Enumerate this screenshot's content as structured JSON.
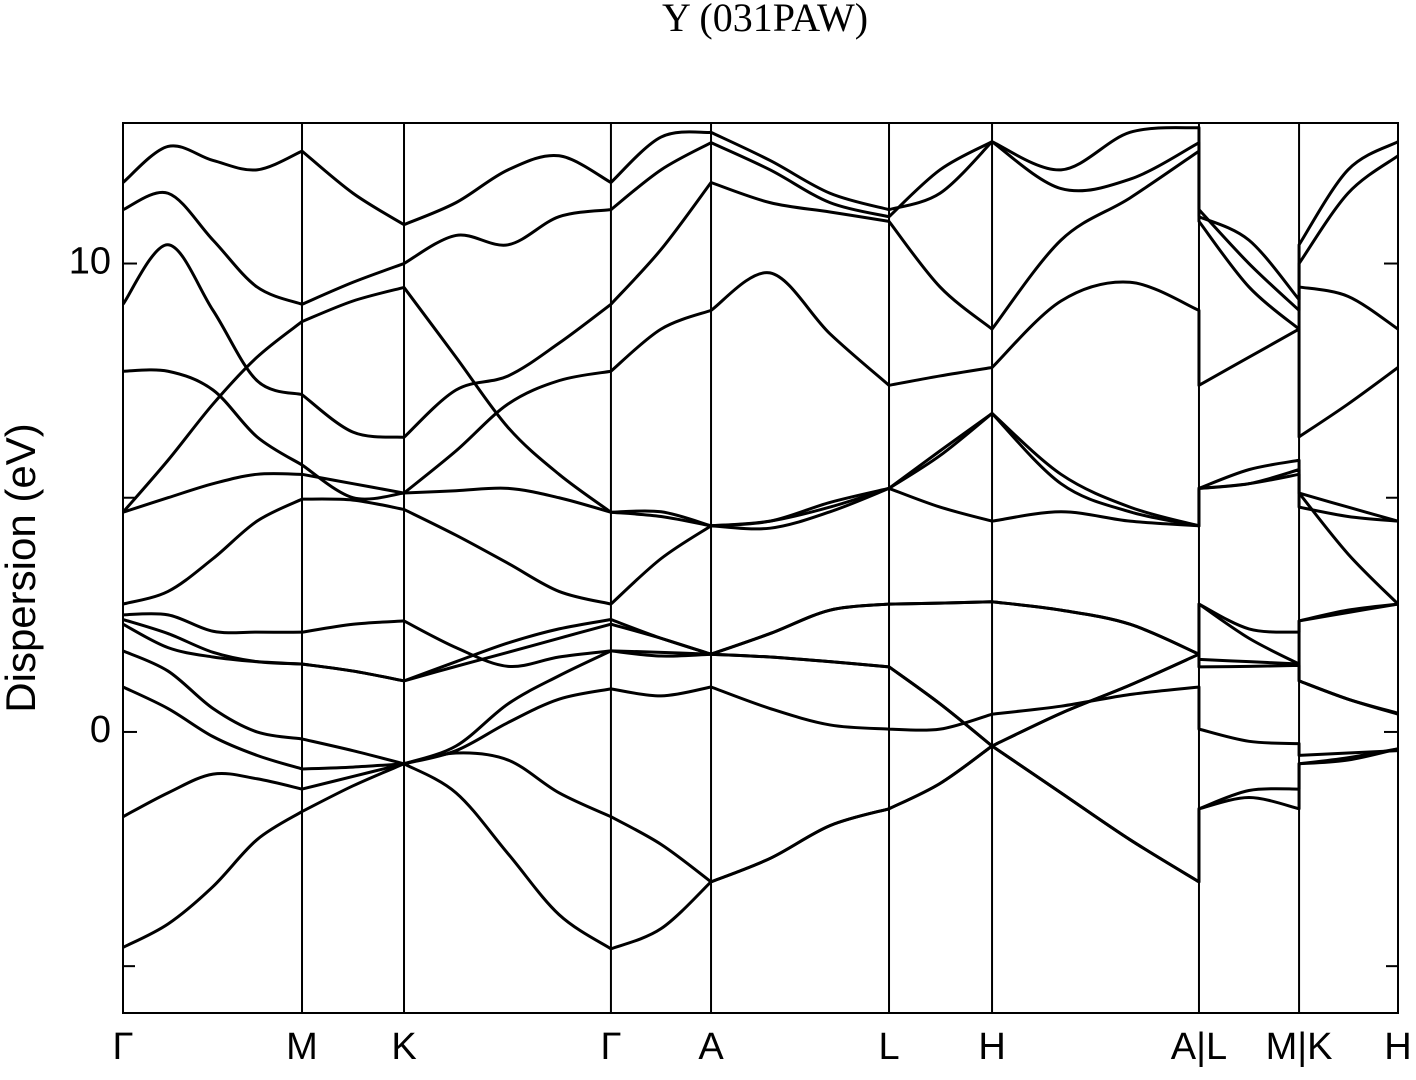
{
  "chart_data": {
    "type": "line",
    "title": "Y (031PAW)",
    "y_label": "Dispersion (eV)",
    "color": "#000000",
    "xlim": [
      0,
      1
    ],
    "ylim": [
      -6,
      13
    ],
    "yticks": [
      0,
      10
    ],
    "minor_yticks": [
      -5,
      5
    ],
    "xticks": [
      {
        "value": 0,
        "label": "Γ"
      },
      {
        "value": 0.1404,
        "label": "M"
      },
      {
        "value": 0.2204,
        "label": "K"
      },
      {
        "value": 0.3827,
        "label": "Γ"
      },
      {
        "value": 0.4612,
        "label": "A"
      },
      {
        "value": 0.6008,
        "label": "L"
      },
      {
        "value": 0.6816,
        "label": "H"
      },
      {
        "value": 0.8439,
        "label": "A|L"
      },
      {
        "value": 0.9224,
        "label": "M|K"
      },
      {
        "value": 1,
        "label": "H"
      }
    ],
    "x": [
      0,
      0.0353,
      0.0706,
      0.1051,
      0.1404,
      0.1804,
      0.2204,
      0.2612,
      0.302,
      0.342,
      0.3827,
      0.422,
      0.4612,
      0.5075,
      0.5545,
      0.6008,
      0.6408,
      0.6816,
      0.7357,
      0.7898,
      0.8439,
      0.8439,
      0.8831,
      0.9224,
      0.9224,
      0.9608,
      1
    ],
    "series": [
      {
        "values": [
          -4.6,
          -4.1,
          -3.3,
          -2.3,
          -1.7,
          -1.15,
          -0.68,
          -1.3,
          -2.6,
          -3.9,
          -4.63,
          -4.2,
          -3.2,
          -2.7,
          -2.0,
          -1.64,
          -1.1,
          -0.3,
          -1.3,
          -2.3,
          -3.2,
          -1.64,
          -1.4,
          -1.64,
          -0.68,
          -0.55,
          -0.36
        ]
      },
      {
        "values": [
          -1.81,
          -1.3,
          -0.9,
          -1.0,
          -1.22,
          -0.95,
          -0.68,
          -0.45,
          -0.6,
          -1.3,
          -1.81,
          -2.4,
          -3.2,
          -2.7,
          -2.0,
          -1.64,
          -1.1,
          -0.3,
          -1.3,
          -2.3,
          -3.2,
          -1.64,
          -1.25,
          -1.22,
          -0.68,
          -0.6,
          -0.36
        ]
      },
      {
        "values": [
          0.96,
          0.5,
          -0.1,
          -0.5,
          -0.79,
          -0.75,
          -0.68,
          -0.4,
          0.2,
          0.7,
          0.92,
          0.77,
          0.96,
          0.5,
          0.15,
          0.06,
          0.06,
          0.38,
          0.55,
          0.8,
          0.96,
          0.06,
          -0.2,
          -0.25,
          -0.5,
          -0.45,
          -0.4
        ]
      },
      {
        "values": [
          1.73,
          1.3,
          0.5,
          0.0,
          -0.15,
          -0.4,
          -0.68,
          -0.3,
          0.6,
          1.2,
          1.73,
          1.62,
          1.66,
          1.6,
          1.5,
          1.39,
          0.6,
          -0.3,
          0.4,
          1.0,
          1.66,
          1.39,
          1.4,
          1.42,
          1.09,
          0.7,
          0.4
        ]
      },
      {
        "values": [
          2.3,
          1.8,
          1.6,
          1.5,
          1.45,
          1.3,
          1.09,
          1.4,
          1.7,
          2.0,
          2.3,
          2.0,
          1.66,
          2.1,
          2.6,
          2.73,
          2.75,
          2.78,
          2.6,
          2.3,
          1.66,
          2.73,
          2.0,
          1.45,
          2.37,
          2.6,
          2.73
        ]
      },
      {
        "values": [
          2.4,
          2.1,
          1.7,
          1.5,
          1.45,
          1.3,
          1.09,
          1.5,
          1.9,
          2.2,
          2.4,
          2.0,
          1.66,
          1.6,
          1.5,
          1.39,
          0.6,
          -0.3,
          0.4,
          1.0,
          1.66,
          1.55,
          1.5,
          1.45,
          1.09,
          0.7,
          0.38
        ]
      },
      {
        "values": [
          2.5,
          2.5,
          2.15,
          2.13,
          2.13,
          2.3,
          2.37,
          1.8,
          1.4,
          1.6,
          1.73,
          1.7,
          1.66,
          2.1,
          2.6,
          2.73,
          2.75,
          2.78,
          2.6,
          2.3,
          1.66,
          2.73,
          2.2,
          2.13,
          2.37,
          2.55,
          2.73
        ]
      },
      {
        "values": [
          2.73,
          3.0,
          3.7,
          4.5,
          4.97,
          4.95,
          4.75,
          4.2,
          3.6,
          3.0,
          2.73,
          3.7,
          4.4,
          4.5,
          4.9,
          5.2,
          5.9,
          6.8,
          5.3,
          4.7,
          4.4,
          5.2,
          5.3,
          5.5,
          5.1,
          3.8,
          2.73
        ]
      },
      {
        "values": [
          4.69,
          5.0,
          5.3,
          5.5,
          5.5,
          5.3,
          5.1,
          5.15,
          5.2,
          5.0,
          4.69,
          4.7,
          4.4,
          4.35,
          4.7,
          5.2,
          4.8,
          4.5,
          4.7,
          4.5,
          4.4,
          5.2,
          5.3,
          5.6,
          4.8,
          4.6,
          4.5
        ]
      },
      {
        "values": [
          4.69,
          5.8,
          7.0,
          8.0,
          8.76,
          9.2,
          9.49,
          8.0,
          6.5,
          5.5,
          4.69,
          4.6,
          4.4,
          4.5,
          4.8,
          5.2,
          6.0,
          6.8,
          5.5,
          4.8,
          4.4,
          5.2,
          5.6,
          5.8,
          5.1,
          4.8,
          4.5
        ]
      },
      {
        "values": [
          7.7,
          7.7,
          7.3,
          6.3,
          5.7,
          5.0,
          5.1,
          6.0,
          7.0,
          7.5,
          7.7,
          8.6,
          9.0,
          9.8,
          8.5,
          7.4,
          7.6,
          7.78,
          9.2,
          9.6,
          9.0,
          7.4,
          8.0,
          8.6,
          6.3,
          7.0,
          7.78
        ]
      },
      {
        "values": [
          9.13,
          10.4,
          9.0,
          7.5,
          7.2,
          6.4,
          6.29,
          7.3,
          7.6,
          8.3,
          9.13,
          10.3,
          11.73,
          11.3,
          11.1,
          10.9,
          9.5,
          8.6,
          10.5,
          11.4,
          12.4,
          10.9,
          9.5,
          8.6,
          9.5,
          9.3,
          8.6
        ]
      },
      {
        "values": [
          11.15,
          11.5,
          10.5,
          9.5,
          9.13,
          9.6,
          10.0,
          10.6,
          10.4,
          11.0,
          11.15,
          12.0,
          12.58,
          12.0,
          11.3,
          11.0,
          12.0,
          12.6,
          11.6,
          11.8,
          12.58,
          11.15,
          10.0,
          9.0,
          10.0,
          11.5,
          12.3
        ]
      },
      {
        "values": [
          11.73,
          12.5,
          12.2,
          12.0,
          12.4,
          11.5,
          10.83,
          11.3,
          12.0,
          12.3,
          11.73,
          12.7,
          12.8,
          12.2,
          11.5,
          11.15,
          11.5,
          12.6,
          12.0,
          12.8,
          12.9,
          11.0,
          10.5,
          9.23,
          10.4,
          12.0,
          12.6
        ]
      }
    ]
  }
}
